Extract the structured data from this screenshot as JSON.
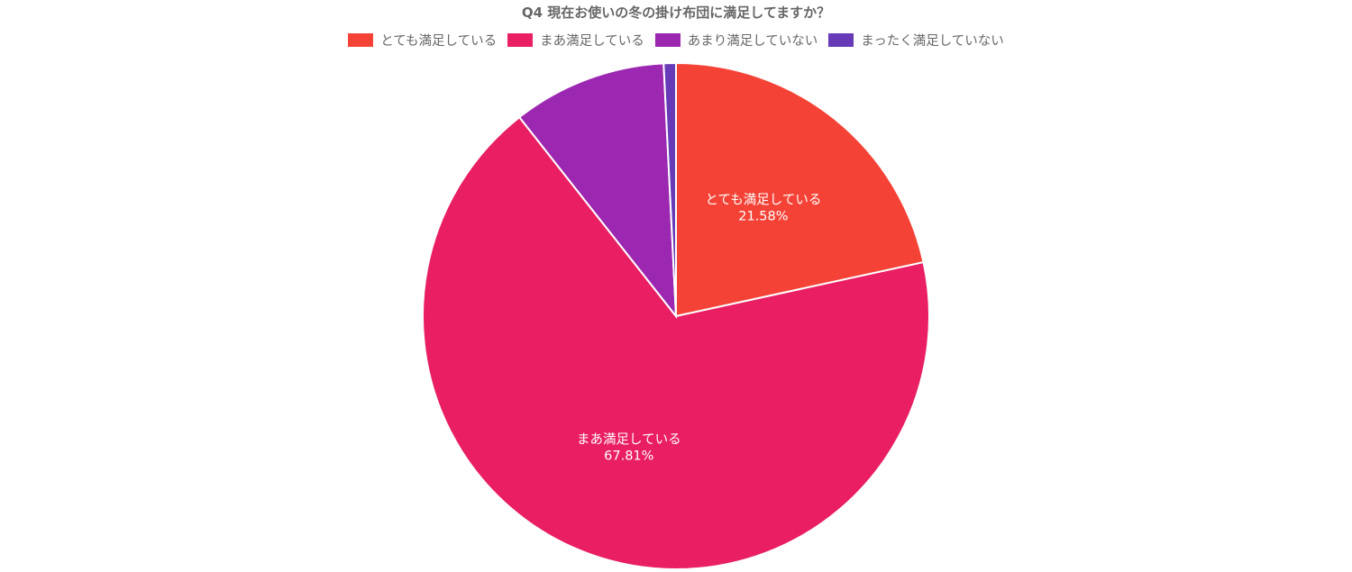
{
  "chart_data": {
    "type": "pie",
    "title": "Q4 現在お使いの冬の掛け布団に満足してますか？",
    "legend_position": "top",
    "slices": [
      {
        "label": "とても満足している",
        "value": 21.58,
        "value_label": "21.58%",
        "color": "#F44336",
        "show_label": true
      },
      {
        "label": "まあ満足している",
        "value": 67.81,
        "value_label": "67.81%",
        "color": "#E91E63",
        "show_label": true
      },
      {
        "label": "あまり満足していない",
        "value": 9.83,
        "value_label": "",
        "color": "#9C27B0",
        "show_label": false
      },
      {
        "label": "まったく満足していない",
        "value": 0.78,
        "value_label": "",
        "color": "#673AB7",
        "show_label": false
      }
    ]
  }
}
